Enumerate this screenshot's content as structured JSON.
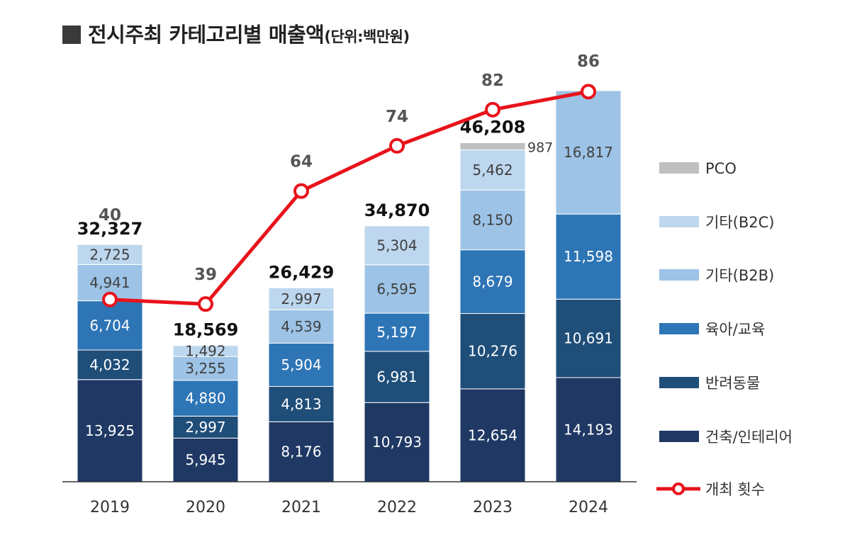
{
  "title": {
    "main": "전시주최 카테고리별 매출액",
    "unit": "(단위:백만원)"
  },
  "chart_data": {
    "type": "bar",
    "stacked": true,
    "title": "전시주최 카테고리별 매출액",
    "unit_label": "(단위:백만원)",
    "categories": [
      "2019",
      "2020",
      "2021",
      "2022",
      "2023",
      "2024"
    ],
    "series": [
      {
        "name": "건축/인테리어",
        "color": "#1f3864",
        "values": [
          13925,
          5945,
          8176,
          10793,
          12654,
          14193
        ]
      },
      {
        "name": "반려동물",
        "color": "#1f4e79",
        "values": [
          4032,
          2997,
          4813,
          6981,
          10276,
          10691
        ]
      },
      {
        "name": "육아/교육",
        "color": "#2e75b6",
        "values": [
          6704,
          4880,
          5904,
          5197,
          8679,
          11598
        ]
      },
      {
        "name": "기타(B2B)",
        "color": "#9dc3e6",
        "values": [
          4941,
          3255,
          4539,
          6595,
          8150,
          16817
        ]
      },
      {
        "name": "기타(B2C)",
        "color": "#bdd7ee",
        "values": [
          2725,
          1492,
          2997,
          5304,
          5462,
          null
        ]
      },
      {
        "name": "PCO",
        "color": "#bfbfbf",
        "values": [
          null,
          null,
          null,
          null,
          987,
          null
        ]
      }
    ],
    "totals": [
      "32,327",
      "18,569",
      "26,429",
      "34,870",
      "46,208",
      null
    ],
    "line": {
      "name": "개최 횟수",
      "color": "#e8131b",
      "values": [
        40,
        39,
        64,
        74,
        82,
        86
      ],
      "range": [
        0,
        100
      ]
    },
    "legend_order": [
      "PCO",
      "기타(B2C)",
      "기타(B2B)",
      "육아/교육",
      "반려동물",
      "건축/인테리어",
      "개최 횟수"
    ],
    "legend_position": "right"
  }
}
